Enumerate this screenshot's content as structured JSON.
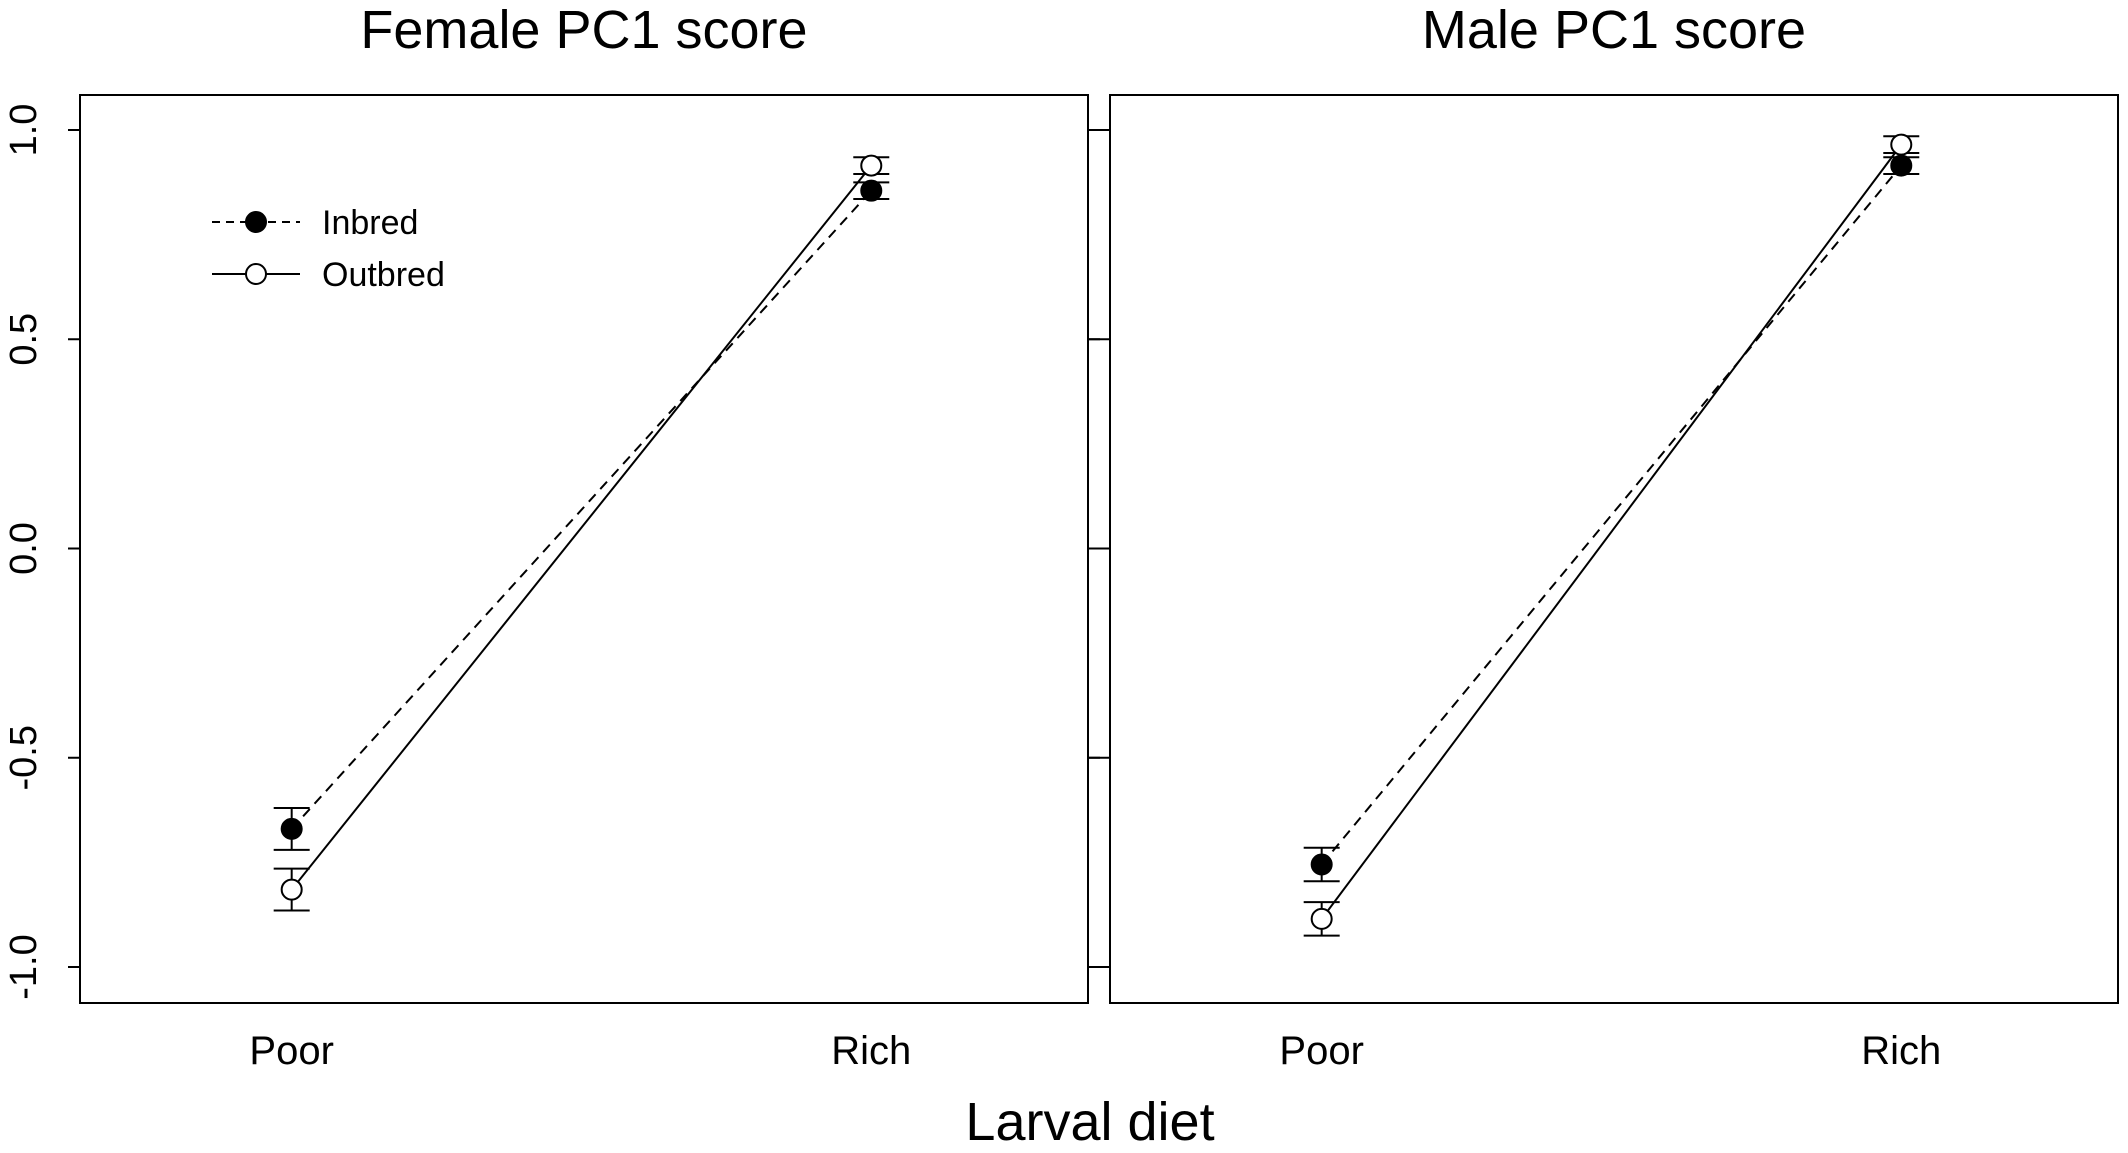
{
  "chart_data": [
    {
      "type": "line",
      "title": "Female PC1 score",
      "categories": [
        "Poor",
        "Rich"
      ],
      "ylim": [
        -1.08,
        1.08
      ],
      "yticks": [
        "-1.0",
        "-0.5",
        "0.0",
        "0.5",
        "1.0"
      ],
      "legend_position": "top-left",
      "grid": false,
      "series": [
        {
          "name": "Inbred",
          "style": "dashed",
          "marker": "filled-circle",
          "values": [
            -0.67,
            0.855
          ],
          "errors": [
            0.05,
            0.02
          ]
        },
        {
          "name": "Outbred",
          "style": "solid",
          "marker": "open-circle",
          "values": [
            -0.815,
            0.915
          ],
          "errors": [
            0.05,
            0.02
          ]
        }
      ]
    },
    {
      "type": "line",
      "title": "Male PC1 score",
      "categories": [
        "Poor",
        "Rich"
      ],
      "ylim": [
        -1.08,
        1.08
      ],
      "yticks": [
        "-1.0",
        "-0.5",
        "0.0",
        "0.5",
        "1.0"
      ],
      "grid": false,
      "series": [
        {
          "name": "Inbred",
          "style": "dashed",
          "marker": "filled-circle",
          "values": [
            -0.755,
            0.915
          ],
          "errors": [
            0.04,
            0.02
          ]
        },
        {
          "name": "Outbred",
          "style": "solid",
          "marker": "open-circle",
          "values": [
            -0.885,
            0.965
          ],
          "errors": [
            0.04,
            0.02
          ]
        }
      ]
    }
  ],
  "xlabel": "Larval diet",
  "colors": {
    "line": "#000000",
    "background": "#ffffff"
  }
}
